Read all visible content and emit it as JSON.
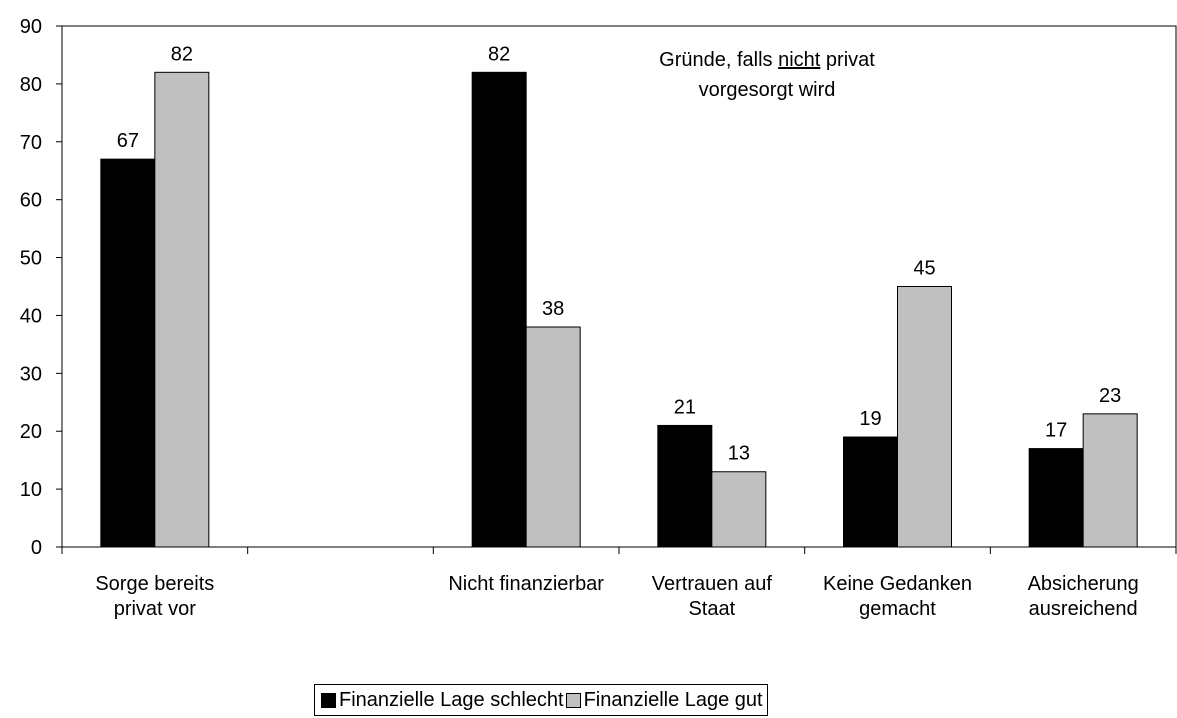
{
  "chart_data": {
    "type": "bar",
    "annotation": [
      "Gründe, falls",
      "nicht",
      "privat",
      "vorgesorgt wird"
    ],
    "categories": [
      "Sorge bereits privat vor",
      null,
      "Nicht finanzierbar",
      "Vertrauen auf Staat",
      "Keine Gedanken gemacht",
      "Absicherung ausreichend"
    ],
    "series": [
      {
        "name": "Finanzielle Lage schlecht",
        "color": "#000000",
        "values": [
          67,
          null,
          82,
          21,
          19,
          17
        ]
      },
      {
        "name": "Finanzielle Lage gut",
        "color": "#c0c0c0",
        "values": [
          82,
          null,
          38,
          13,
          45,
          23
        ]
      }
    ],
    "ylim": [
      0,
      90
    ],
    "yticks": [
      0,
      10,
      20,
      30,
      40,
      50,
      60,
      70,
      80,
      90
    ],
    "grid": false,
    "legend": "bottom"
  }
}
